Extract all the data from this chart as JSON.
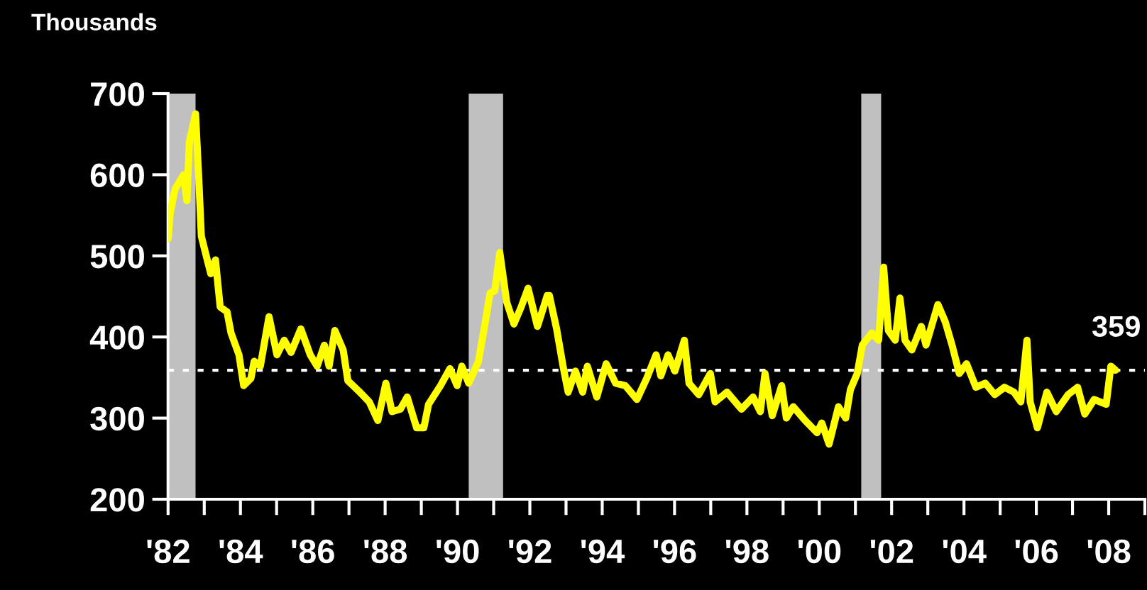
{
  "chart_data": {
    "type": "line",
    "ylabel": "Thousands",
    "x": [
      1982.0,
      1982.06,
      1982.19,
      1982.43,
      1982.52,
      1982.59,
      1982.76,
      1982.85,
      1982.92,
      1983.05,
      1983.18,
      1983.31,
      1983.44,
      1983.63,
      1983.74,
      1983.96,
      1984.09,
      1984.29,
      1984.38,
      1984.55,
      1984.79,
      1985.01,
      1985.21,
      1985.4,
      1985.67,
      1985.93,
      1986.12,
      1986.32,
      1986.45,
      1986.61,
      1986.84,
      1986.97,
      1987.3,
      1987.56,
      1987.8,
      1988.02,
      1988.19,
      1988.42,
      1988.61,
      1988.87,
      1989.07,
      1989.2,
      1989.53,
      1989.79,
      1989.99,
      1990.12,
      1990.31,
      1990.58,
      1990.77,
      1990.9,
      1991.03,
      1991.17,
      1991.36,
      1991.56,
      1991.76,
      1991.95,
      1992.21,
      1992.48,
      1992.54,
      1992.74,
      1992.93,
      1993.06,
      1993.26,
      1993.46,
      1993.59,
      1993.85,
      1994.11,
      1994.37,
      1994.64,
      1994.96,
      1995.23,
      1995.49,
      1995.62,
      1995.82,
      1996.01,
      1996.27,
      1996.4,
      1996.67,
      1996.99,
      1997.12,
      1997.45,
      1997.85,
      1998.17,
      1998.37,
      1998.5,
      1998.7,
      1998.96,
      1999.09,
      1999.28,
      1999.61,
      1999.94,
      2000.07,
      2000.27,
      2000.53,
      2000.73,
      2000.86,
      2001.05,
      2001.19,
      2001.45,
      2001.64,
      2001.78,
      2001.91,
      2002.1,
      2002.23,
      2002.37,
      2002.56,
      2002.82,
      2002.95,
      2003.28,
      2003.48,
      2003.67,
      2003.87,
      2004.07,
      2004.33,
      2004.59,
      2004.85,
      2005.12,
      2005.38,
      2005.57,
      2005.74,
      2005.83,
      2006.03,
      2006.29,
      2006.55,
      2006.88,
      2007.14,
      2007.34,
      2007.6,
      2007.93,
      2008.06,
      2008.19
    ],
    "series": [
      {
        "color": "#ffff00",
        "values": [
          521,
          553,
          582,
          600,
          568,
          641,
          675,
          594,
          524,
          501,
          478,
          495,
          437,
          431,
          405,
          378,
          340,
          349,
          370,
          364,
          425,
          378,
          396,
          381,
          410,
          378,
          364,
          390,
          364,
          408,
          384,
          346,
          332,
          320,
          297,
          343,
          308,
          311,
          326,
          288,
          288,
          317,
          340,
          361,
          340,
          364,
          343,
          370,
          419,
          454,
          457,
          504,
          443,
          416,
          437,
          460,
          413,
          451,
          451,
          410,
          361,
          332,
          358,
          332,
          364,
          326,
          367,
          343,
          340,
          323,
          349,
          378,
          352,
          378,
          358,
          396,
          343,
          329,
          355,
          320,
          332,
          311,
          326,
          308,
          355,
          303,
          340,
          300,
          314,
          297,
          282,
          294,
          268,
          314,
          300,
          335,
          355,
          390,
          405,
          396,
          486,
          408,
          396,
          448,
          396,
          384,
          413,
          390,
          440,
          419,
          390,
          355,
          367,
          338,
          343,
          329,
          338,
          332,
          320,
          396,
          320,
          288,
          332,
          308,
          329,
          338,
          305,
          323,
          317,
          364,
          359
        ]
      }
    ],
    "xlim": [
      1982,
      2009
    ],
    "xticks": [
      {
        "value": 1982,
        "label": "'82"
      },
      {
        "value": 1983,
        "label": null
      },
      {
        "value": 1984,
        "label": "'84"
      },
      {
        "value": 1985,
        "label": null
      },
      {
        "value": 1986,
        "label": "'86"
      },
      {
        "value": 1987,
        "label": null
      },
      {
        "value": 1988,
        "label": "'88"
      },
      {
        "value": 1989,
        "label": null
      },
      {
        "value": 1990,
        "label": "'90"
      },
      {
        "value": 1991,
        "label": null
      },
      {
        "value": 1992,
        "label": "'92"
      },
      {
        "value": 1993,
        "label": null
      },
      {
        "value": 1994,
        "label": "'94"
      },
      {
        "value": 1995,
        "label": null
      },
      {
        "value": 1996,
        "label": "'96"
      },
      {
        "value": 1997,
        "label": null
      },
      {
        "value": 1998,
        "label": "'98"
      },
      {
        "value": 1999,
        "label": null
      },
      {
        "value": 2000,
        "label": "'00"
      },
      {
        "value": 2001,
        "label": null
      },
      {
        "value": 2002,
        "label": "'02"
      },
      {
        "value": 2003,
        "label": null
      },
      {
        "value": 2004,
        "label": "'04"
      },
      {
        "value": 2005,
        "label": null
      },
      {
        "value": 2006,
        "label": "'06"
      },
      {
        "value": 2007,
        "label": null
      },
      {
        "value": 2008,
        "label": "'08"
      },
      {
        "value": 2009,
        "label": null
      }
    ],
    "ylim": [
      200,
      700
    ],
    "yticks": [
      200,
      300,
      400,
      500,
      600,
      700
    ],
    "ref_lines": [
      {
        "axis": "y",
        "value": 359,
        "label": "359",
        "color": "#ffffff",
        "line_style": "dotted"
      }
    ],
    "bands": [
      {
        "axis": "x",
        "from": 1982.04,
        "to": 1982.76,
        "color": "#c0c0c0"
      },
      {
        "axis": "x",
        "from": 1990.31,
        "to": 1991.26,
        "color": "#c0c0c0"
      },
      {
        "axis": "x",
        "from": 2001.16,
        "to": 2001.71,
        "color": "#c0c0c0"
      }
    ],
    "grid": false,
    "legend": false,
    "marker": "none",
    "line_style": "solid"
  }
}
